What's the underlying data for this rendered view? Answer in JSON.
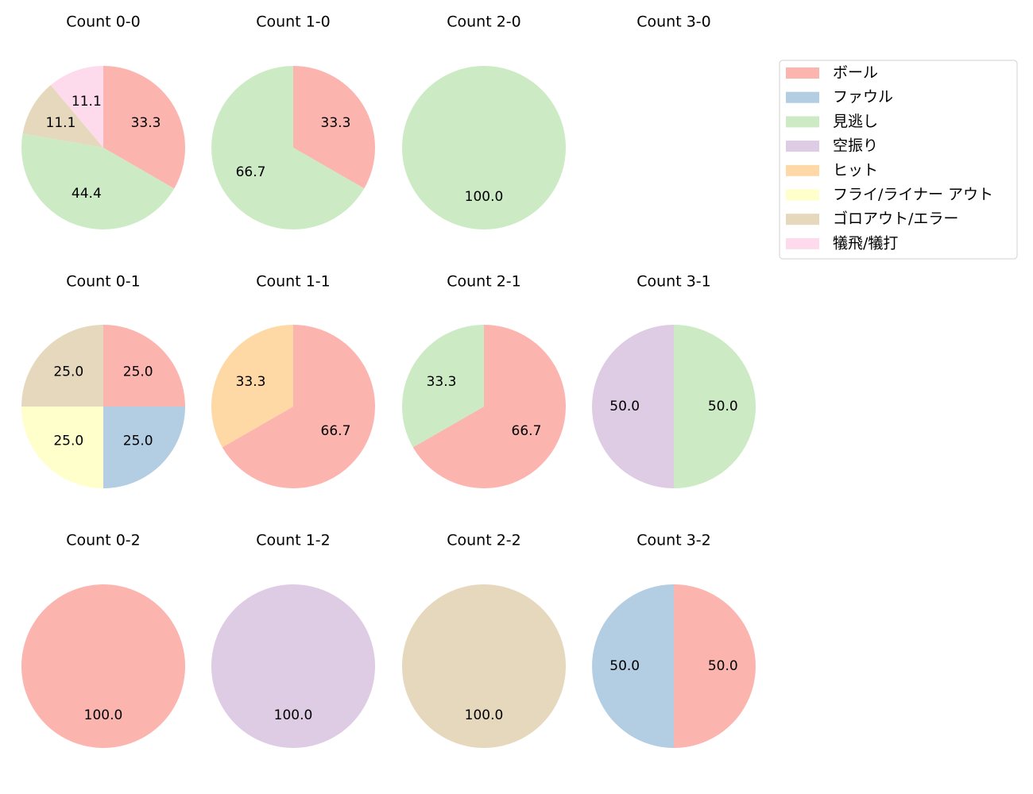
{
  "legend": {
    "labels": [
      "ボール",
      "ファウル",
      "見逃し",
      "空振り",
      "ヒット",
      "フライ/ライナー アウト",
      "ゴロアウト/エラー",
      "犠飛/犠打"
    ],
    "colors": [
      "#fbb4ae",
      "#b3cde3",
      "#ccebc5",
      "#decbe4",
      "#fed9a6",
      "#ffffcc",
      "#e5d8bd",
      "#fddaec"
    ]
  },
  "chart_data": [
    {
      "type": "pie",
      "title": "Count 0-0",
      "categories": [
        "ボール",
        "見逃し",
        "ゴロアウト/エラー",
        "犠飛/犠打"
      ],
      "values": [
        33.3,
        44.4,
        11.1,
        11.1
      ],
      "value_labels": [
        "33.3",
        "44.4",
        "11.1",
        "11.1"
      ]
    },
    {
      "type": "pie",
      "title": "Count 1-0",
      "categories": [
        "ボール",
        "見逃し"
      ],
      "values": [
        33.3,
        66.7
      ],
      "value_labels": [
        "33.3",
        "66.7"
      ]
    },
    {
      "type": "pie",
      "title": "Count 2-0",
      "categories": [
        "見逃し"
      ],
      "values": [
        100
      ],
      "value_labels": [
        "100.0"
      ]
    },
    {
      "type": "pie",
      "title": "Count 3-0",
      "categories": [],
      "values": [],
      "value_labels": []
    },
    {
      "type": "pie",
      "title": "Count 0-1",
      "categories": [
        "ボール",
        "ファウル",
        "フライ/ライナー アウト",
        "ゴロアウト/エラー"
      ],
      "values": [
        25,
        25,
        25,
        25
      ],
      "value_labels": [
        "25.0",
        "25.0",
        "25.0",
        "25.0"
      ]
    },
    {
      "type": "pie",
      "title": "Count 1-1",
      "categories": [
        "ボール",
        "ヒット"
      ],
      "values": [
        66.7,
        33.3
      ],
      "value_labels": [
        "66.7",
        "33.3"
      ]
    },
    {
      "type": "pie",
      "title": "Count 2-1",
      "categories": [
        "ボール",
        "見逃し"
      ],
      "values": [
        66.7,
        33.3
      ],
      "value_labels": [
        "66.7",
        "33.3"
      ]
    },
    {
      "type": "pie",
      "title": "Count 3-1",
      "categories": [
        "見逃し",
        "空振り"
      ],
      "values": [
        50,
        50
      ],
      "value_labels": [
        "50.0",
        "50.0"
      ]
    },
    {
      "type": "pie",
      "title": "Count 0-2",
      "categories": [
        "ボール"
      ],
      "values": [
        100
      ],
      "value_labels": [
        "100.0"
      ]
    },
    {
      "type": "pie",
      "title": "Count 1-2",
      "categories": [
        "空振り"
      ],
      "values": [
        100
      ],
      "value_labels": [
        "100.0"
      ]
    },
    {
      "type": "pie",
      "title": "Count 2-2",
      "categories": [
        "ゴロアウト/エラー"
      ],
      "values": [
        100
      ],
      "value_labels": [
        "100.0"
      ]
    },
    {
      "type": "pie",
      "title": "Count 3-2",
      "categories": [
        "ボール",
        "ファウル"
      ],
      "values": [
        50,
        50
      ],
      "value_labels": [
        "50.0",
        "50.0"
      ]
    }
  ]
}
